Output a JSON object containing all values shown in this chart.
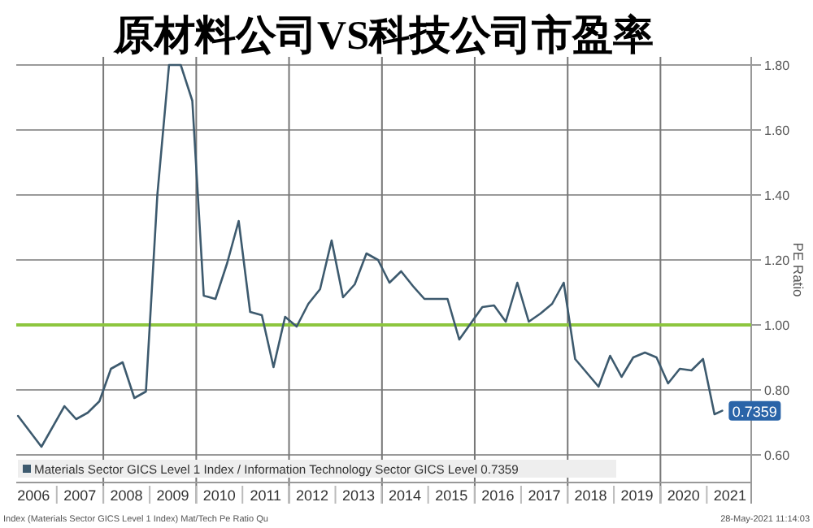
{
  "chart_data": {
    "type": "line",
    "title": "原材料公司VS科技公司市盈率",
    "ylabel": "PE Ratio",
    "x": [
      "2006-03",
      "2006-09",
      "2007-03",
      "2007-06",
      "2007-09",
      "2007-12",
      "2008-03",
      "2008-06",
      "2008-09",
      "2008-12",
      "2009-03",
      "2009-06",
      "2009-09",
      "2009-12",
      "2010-03",
      "2010-06",
      "2010-09",
      "2010-12",
      "2011-03",
      "2011-06",
      "2011-09",
      "2011-12",
      "2012-03",
      "2012-06",
      "2012-09",
      "2012-12",
      "2013-03",
      "2013-06",
      "2013-09",
      "2013-12",
      "2014-03",
      "2014-06",
      "2014-09",
      "2014-12",
      "2015-06",
      "2015-09",
      "2015-12",
      "2016-03",
      "2016-06",
      "2016-09",
      "2016-12",
      "2017-03",
      "2017-06",
      "2017-09",
      "2017-12",
      "2018-03",
      "2018-09",
      "2018-12",
      "2019-03",
      "2019-06",
      "2019-09",
      "2019-12",
      "2020-03",
      "2020-06",
      "2020-09",
      "2020-12",
      "2021-03",
      "2021-05"
    ],
    "series": [
      {
        "name": "Materials Sector GICS Level 1 Index / Information Technology Sector GICS Level 0.7359",
        "color": "#3d5a6e",
        "values": [
          0.72,
          0.625,
          0.75,
          0.71,
          0.73,
          0.765,
          0.865,
          0.885,
          0.775,
          0.795,
          1.4,
          1.8,
          1.8,
          1.69,
          1.09,
          1.08,
          1.19,
          1.32,
          1.04,
          1.03,
          0.87,
          1.025,
          0.995,
          1.065,
          1.11,
          1.26,
          1.085,
          1.125,
          1.22,
          1.2,
          1.13,
          1.165,
          1.12,
          1.08,
          1.08,
          0.955,
          1.005,
          1.055,
          1.06,
          1.01,
          1.13,
          1.01,
          1.035,
          1.065,
          1.13,
          0.895,
          0.81,
          0.905,
          0.84,
          0.9,
          0.915,
          0.9,
          0.82,
          0.865,
          0.86,
          0.895,
          0.725,
          0.7359
        ],
        "value_labels": [
          null,
          null,
          null,
          null,
          null,
          null,
          null,
          null,
          null,
          null,
          null,
          null,
          null,
          null,
          null,
          null,
          null,
          null,
          null,
          null,
          null,
          null,
          null,
          null,
          null,
          null,
          null,
          null,
          null,
          null,
          null,
          null,
          null,
          null,
          null,
          null,
          null,
          null,
          null,
          null,
          null,
          null,
          null,
          null,
          null,
          null,
          null,
          null,
          null,
          null,
          null,
          null,
          null,
          null,
          null,
          null,
          null,
          "0.7359"
        ]
      }
    ],
    "xlim": [
      "2006-02-15",
      "2021-12-15"
    ],
    "xticks": [
      {
        "value": "2006-07-01",
        "label": "2006"
      },
      {
        "value": "2007-07-01",
        "label": "2007"
      },
      {
        "value": "2008-01-01",
        "label": null
      },
      {
        "value": "2008-07-01",
        "label": "2008"
      },
      {
        "value": "2009-07-01",
        "label": "2009"
      },
      {
        "value": "2010-01-01",
        "label": null
      },
      {
        "value": "2010-07-01",
        "label": "2010"
      },
      {
        "value": "2011-07-01",
        "label": "2011"
      },
      {
        "value": "2012-01-01",
        "label": null
      },
      {
        "value": "2012-07-01",
        "label": "2012"
      },
      {
        "value": "2013-07-01",
        "label": "2013"
      },
      {
        "value": "2014-01-01",
        "label": null
      },
      {
        "value": "2014-07-01",
        "label": "2014"
      },
      {
        "value": "2015-07-01",
        "label": "2015"
      },
      {
        "value": "2016-01-01",
        "label": null
      },
      {
        "value": "2016-07-01",
        "label": "2016"
      },
      {
        "value": "2017-07-01",
        "label": "2017"
      },
      {
        "value": "2018-01-01",
        "label": null
      },
      {
        "value": "2018-07-01",
        "label": "2018"
      },
      {
        "value": "2019-07-01",
        "label": "2019"
      },
      {
        "value": "2020-01-01",
        "label": null
      },
      {
        "value": "2020-07-01",
        "label": "2020"
      },
      {
        "value": "2021-07-01",
        "label": "2021"
      }
    ],
    "ylim": [
      0.515,
      1.825
    ],
    "yticks": [
      {
        "value": 0.6,
        "label": "0.60"
      },
      {
        "value": 0.8,
        "label": "0.80"
      },
      {
        "value": 1.0,
        "label": "1.00"
      },
      {
        "value": 1.2,
        "label": "1.20"
      },
      {
        "value": 1.4,
        "label": "1.40"
      },
      {
        "value": 1.6,
        "label": "1.60"
      },
      {
        "value": 1.8,
        "label": "1.80"
      }
    ],
    "grid": true,
    "legend": "bottom left",
    "ref_lines": [
      {
        "axis": "y",
        "value": 1.0,
        "color": "#8dc63f"
      }
    ],
    "annotations": [
      "Index (Materials Sector GICS Level 1 Index) Mat/Tech Pe Ratio Qu",
      "28-May-2021 11:14:03"
    ]
  }
}
